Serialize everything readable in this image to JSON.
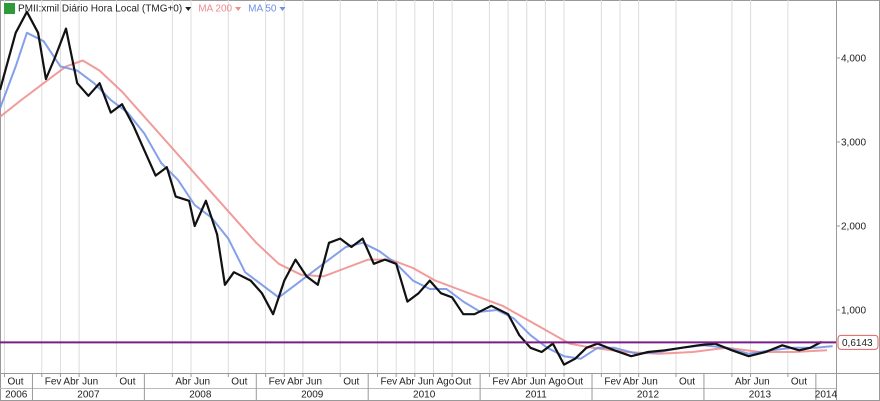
{
  "chart_data": {
    "type": "line",
    "xlim": [
      2006.71,
      2014.18
    ],
    "ylim": [
      0.25,
      4.69
    ],
    "yticks": [
      {
        "value": 1,
        "label": "1,000"
      },
      {
        "value": 2,
        "label": "2,000"
      },
      {
        "value": 3,
        "label": "3,000"
      },
      {
        "value": 4,
        "label": "4,000"
      }
    ],
    "xticks": [
      {
        "value": 2006.75,
        "label": "Out"
      },
      {
        "value": 2007.0833,
        "label": "Fev"
      },
      {
        "value": 2007.25,
        "label": "Abr"
      },
      {
        "value": 2007.4167,
        "label": "Jun"
      },
      {
        "value": 2007.75,
        "label": "Out"
      },
      {
        "value": 2008.25,
        "label": "Abr"
      },
      {
        "value": 2008.4167,
        "label": "Jun"
      },
      {
        "value": 2008.75,
        "label": "Out"
      },
      {
        "value": 2009.0833,
        "label": "Fev"
      },
      {
        "value": 2009.25,
        "label": "Abr"
      },
      {
        "value": 2009.4167,
        "label": "Jun"
      },
      {
        "value": 2009.75,
        "label": "Out"
      },
      {
        "value": 2010.0833,
        "label": "Fev"
      },
      {
        "value": 2010.25,
        "label": "Abr"
      },
      {
        "value": 2010.4167,
        "label": "Jun"
      },
      {
        "value": 2010.5833,
        "label": "Ago"
      },
      {
        "value": 2010.75,
        "label": "Out"
      },
      {
        "value": 2011.0833,
        "label": "Fev"
      },
      {
        "value": 2011.25,
        "label": "Abr"
      },
      {
        "value": 2011.4167,
        "label": "Jun"
      },
      {
        "value": 2011.5833,
        "label": "Ago"
      },
      {
        "value": 2011.75,
        "label": "Out"
      },
      {
        "value": 2012.0833,
        "label": "Fev"
      },
      {
        "value": 2012.25,
        "label": "Abr"
      },
      {
        "value": 2012.4167,
        "label": "Jun"
      },
      {
        "value": 2012.75,
        "label": "Out"
      },
      {
        "value": 2013.25,
        "label": "Abr"
      },
      {
        "value": 2013.4167,
        "label": "Jun"
      },
      {
        "value": 2013.75,
        "label": "Out"
      }
    ],
    "year_ticks": [
      2006,
      2007,
      2008,
      2009,
      2010,
      2011,
      2012,
      2013,
      2014
    ],
    "grid": true,
    "hline": {
      "value": 0.6143,
      "label": "0,6143",
      "color": "#7a1f86"
    },
    "series": [
      {
        "name": "PMII:xmil Diário Hora Local (TMG+0)",
        "color": "#111111",
        "x": [
          2006.71,
          2006.85,
          2006.95,
          2007.05,
          2007.12,
          2007.2,
          2007.3,
          2007.4,
          2007.5,
          2007.6,
          2007.7,
          2007.8,
          2007.9,
          2008.0,
          2008.1,
          2008.2,
          2008.28,
          2008.4,
          2008.45,
          2008.55,
          2008.65,
          2008.72,
          2008.8,
          2008.95,
          2009.05,
          2009.15,
          2009.25,
          2009.35,
          2009.45,
          2009.55,
          2009.65,
          2009.75,
          2009.85,
          2009.95,
          2010.05,
          2010.15,
          2010.25,
          2010.35,
          2010.45,
          2010.55,
          2010.65,
          2010.75,
          2010.85,
          2010.95,
          2011.1,
          2011.25,
          2011.35,
          2011.45,
          2011.55,
          2011.65,
          2011.75,
          2011.85,
          2011.95,
          2012.05,
          2012.2,
          2012.35,
          2012.5,
          2012.65,
          2012.8,
          2012.95,
          2013.1,
          2013.25,
          2013.4,
          2013.55,
          2013.7,
          2013.85,
          2013.95,
          2014.05
        ],
        "values": [
          3.62,
          4.3,
          4.55,
          4.3,
          3.75,
          4.0,
          4.35,
          3.7,
          3.55,
          3.7,
          3.35,
          3.45,
          3.2,
          2.9,
          2.6,
          2.7,
          2.35,
          2.3,
          2.0,
          2.3,
          1.9,
          1.3,
          1.45,
          1.35,
          1.2,
          0.95,
          1.35,
          1.6,
          1.4,
          1.3,
          1.8,
          1.85,
          1.75,
          1.85,
          1.55,
          1.6,
          1.55,
          1.1,
          1.2,
          1.35,
          1.2,
          1.15,
          0.95,
          0.95,
          1.05,
          0.95,
          0.7,
          0.55,
          0.5,
          0.6,
          0.35,
          0.42,
          0.55,
          0.6,
          0.52,
          0.45,
          0.5,
          0.52,
          0.55,
          0.58,
          0.6,
          0.52,
          0.45,
          0.5,
          0.58,
          0.52,
          0.55,
          0.62
        ]
      },
      {
        "name": "MA 200",
        "color": "#f08a8a",
        "x": [
          2006.71,
          2006.9,
          2007.1,
          2007.3,
          2007.45,
          2007.6,
          2007.8,
          2008.0,
          2008.2,
          2008.4,
          2008.6,
          2008.8,
          2009.0,
          2009.2,
          2009.4,
          2009.6,
          2009.8,
          2010.0,
          2010.2,
          2010.4,
          2010.6,
          2010.8,
          2011.0,
          2011.2,
          2011.4,
          2011.6,
          2011.8,
          2012.0,
          2012.3,
          2012.6,
          2012.9,
          2013.2,
          2013.5,
          2013.8,
          2014.1
        ],
        "values": [
          3.3,
          3.5,
          3.7,
          3.9,
          3.97,
          3.85,
          3.6,
          3.3,
          3.0,
          2.7,
          2.4,
          2.1,
          1.8,
          1.55,
          1.42,
          1.4,
          1.5,
          1.6,
          1.6,
          1.5,
          1.35,
          1.25,
          1.15,
          1.05,
          0.9,
          0.75,
          0.6,
          0.55,
          0.5,
          0.48,
          0.5,
          0.55,
          0.5,
          0.5,
          0.52
        ]
      },
      {
        "name": "MA 50",
        "color": "#6f8fe8",
        "x": [
          2006.71,
          2006.85,
          2006.95,
          2007.1,
          2007.25,
          2007.4,
          2007.55,
          2007.7,
          2007.85,
          2008.0,
          2008.15,
          2008.3,
          2008.45,
          2008.6,
          2008.75,
          2008.9,
          2009.05,
          2009.2,
          2009.35,
          2009.5,
          2009.65,
          2009.8,
          2009.95,
          2010.1,
          2010.25,
          2010.4,
          2010.55,
          2010.7,
          2010.85,
          2011.0,
          2011.15,
          2011.3,
          2011.45,
          2011.6,
          2011.75,
          2011.9,
          2012.05,
          2012.2,
          2012.4,
          2012.6,
          2012.8,
          2013.0,
          2013.2,
          2013.4,
          2013.6,
          2013.8,
          2014.0,
          2014.15
        ],
        "values": [
          3.4,
          3.9,
          4.3,
          4.2,
          3.9,
          3.85,
          3.7,
          3.5,
          3.35,
          3.1,
          2.75,
          2.55,
          2.25,
          2.1,
          1.85,
          1.45,
          1.3,
          1.15,
          1.3,
          1.45,
          1.6,
          1.75,
          1.8,
          1.7,
          1.55,
          1.35,
          1.25,
          1.25,
          1.1,
          0.98,
          1.0,
          0.9,
          0.7,
          0.55,
          0.45,
          0.42,
          0.55,
          0.55,
          0.48,
          0.5,
          0.55,
          0.58,
          0.55,
          0.48,
          0.52,
          0.55,
          0.55,
          0.57
        ]
      }
    ]
  }
}
